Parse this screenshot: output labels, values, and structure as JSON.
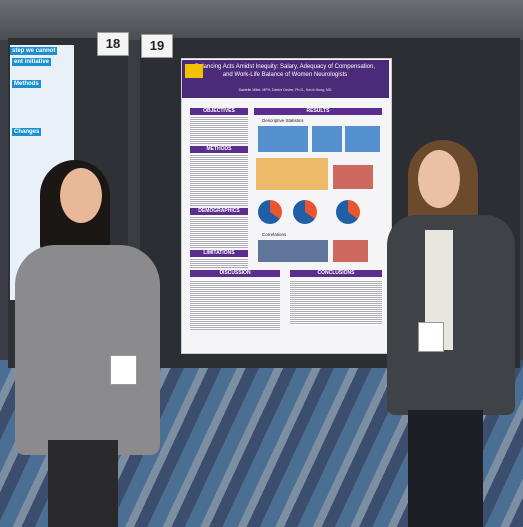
{
  "boards": {
    "left": "18",
    "right": "19"
  },
  "poster": {
    "title": "Balancing Acts Amidst Inequity: Salary, Adequacy of Compensation, and Work-Life Balance of Women Neurologists",
    "authors": "Danielle Miller, MPH, Deidre Devier, Ph.D., Kevin Hong, MD",
    "sections": [
      "OBJECTIVES",
      "METHODS",
      "DEMOGRAPHICS",
      "LIMITATIONS",
      "RESULTS",
      "DISCUSSION",
      "CONCLUSIONS"
    ],
    "subheadings": [
      "Descriptive Statistics",
      "Correlations"
    ]
  },
  "left_poster": {
    "headings": [
      "step we cannot",
      "ent initiative",
      "Methods",
      "Changes"
    ]
  }
}
